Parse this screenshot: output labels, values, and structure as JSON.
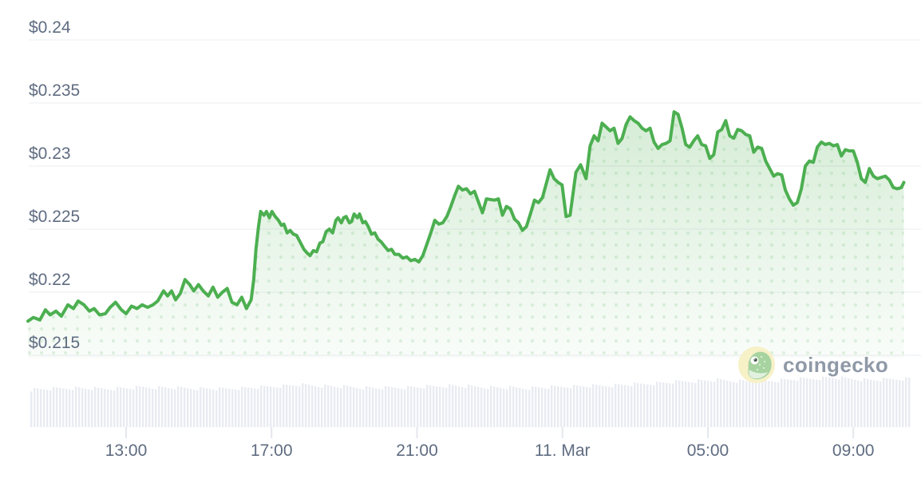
{
  "watermark": {
    "text": "coingecko"
  },
  "chart_data": {
    "type": "area",
    "x_axis": {
      "unit": "time",
      "domain_hours": [
        10.3,
        34.4
      ],
      "ticks": [
        {
          "value": 13,
          "label": "13:00"
        },
        {
          "value": 17,
          "label": "17:00"
        },
        {
          "value": 21,
          "label": "21:00"
        },
        {
          "value": 25,
          "label": "11. Mar"
        },
        {
          "value": 29,
          "label": "05:00"
        },
        {
          "value": 33,
          "label": "09:00"
        }
      ]
    },
    "y_axis": {
      "unit": "USD",
      "domain": [
        0.2147,
        0.2432
      ],
      "ticks": [
        {
          "value": 0.24,
          "label": "$0.24"
        },
        {
          "value": 0.235,
          "label": "$0.235"
        },
        {
          "value": 0.23,
          "label": "$0.23"
        },
        {
          "value": 0.225,
          "label": "$0.225"
        },
        {
          "value": 0.22,
          "label": "$0.22"
        },
        {
          "value": 0.215,
          "label": "$0.215"
        }
      ]
    },
    "series": [
      {
        "name": "price",
        "unit": "USD",
        "points": [
          [
            10.3,
            0.2177
          ],
          [
            10.45,
            0.218
          ],
          [
            10.63,
            0.2178
          ],
          [
            10.78,
            0.2186
          ],
          [
            10.91,
            0.2182
          ],
          [
            11.07,
            0.2185
          ],
          [
            11.22,
            0.2181
          ],
          [
            11.4,
            0.219
          ],
          [
            11.55,
            0.2187
          ],
          [
            11.68,
            0.2193
          ],
          [
            11.84,
            0.219
          ],
          [
            11.99,
            0.2185
          ],
          [
            12.12,
            0.2187
          ],
          [
            12.27,
            0.2182
          ],
          [
            12.43,
            0.2183
          ],
          [
            12.56,
            0.2188
          ],
          [
            12.71,
            0.2192
          ],
          [
            12.87,
            0.2186
          ],
          [
            13.0,
            0.2183
          ],
          [
            13.15,
            0.2189
          ],
          [
            13.3,
            0.2187
          ],
          [
            13.44,
            0.219
          ],
          [
            13.59,
            0.2188
          ],
          [
            13.74,
            0.219
          ],
          [
            13.87,
            0.2193
          ],
          [
            14.03,
            0.2201
          ],
          [
            14.14,
            0.2197
          ],
          [
            14.25,
            0.2201
          ],
          [
            14.36,
            0.2194
          ],
          [
            14.49,
            0.2199
          ],
          [
            14.62,
            0.221
          ],
          [
            14.75,
            0.2206
          ],
          [
            14.86,
            0.2201
          ],
          [
            14.99,
            0.2206
          ],
          [
            15.12,
            0.2201
          ],
          [
            15.26,
            0.2197
          ],
          [
            15.39,
            0.2204
          ],
          [
            15.52,
            0.2196
          ],
          [
            15.65,
            0.22
          ],
          [
            15.78,
            0.2203
          ],
          [
            15.91,
            0.2192
          ],
          [
            16.05,
            0.219
          ],
          [
            16.18,
            0.2196
          ],
          [
            16.31,
            0.2187
          ],
          [
            16.44,
            0.2194
          ],
          [
            16.51,
            0.221
          ],
          [
            16.57,
            0.2234
          ],
          [
            16.64,
            0.2252
          ],
          [
            16.7,
            0.2264
          ],
          [
            16.79,
            0.2261
          ],
          [
            16.86,
            0.2264
          ],
          [
            16.94,
            0.2259
          ],
          [
            17.01,
            0.2264
          ],
          [
            17.1,
            0.226
          ],
          [
            17.19,
            0.2257
          ],
          [
            17.27,
            0.2253
          ],
          [
            17.34,
            0.2254
          ],
          [
            17.43,
            0.2247
          ],
          [
            17.51,
            0.2249
          ],
          [
            17.6,
            0.2246
          ],
          [
            17.69,
            0.2245
          ],
          [
            17.8,
            0.2239
          ],
          [
            17.89,
            0.2234
          ],
          [
            17.98,
            0.2231
          ],
          [
            18.06,
            0.2229
          ],
          [
            18.15,
            0.2233
          ],
          [
            18.24,
            0.2232
          ],
          [
            18.33,
            0.2239
          ],
          [
            18.41,
            0.224
          ],
          [
            18.5,
            0.2248
          ],
          [
            18.59,
            0.225
          ],
          [
            18.68,
            0.2247
          ],
          [
            18.77,
            0.2257
          ],
          [
            18.83,
            0.2259
          ],
          [
            18.92,
            0.2255
          ],
          [
            18.98,
            0.2259
          ],
          [
            19.05,
            0.226
          ],
          [
            19.14,
            0.2255
          ],
          [
            19.2,
            0.2256
          ],
          [
            19.27,
            0.2262
          ],
          [
            19.36,
            0.2259
          ],
          [
            19.42,
            0.2262
          ],
          [
            19.51,
            0.2255
          ],
          [
            19.58,
            0.2256
          ],
          [
            19.66,
            0.2252
          ],
          [
            19.75,
            0.2246
          ],
          [
            19.84,
            0.2247
          ],
          [
            19.93,
            0.2242
          ],
          [
            20.01,
            0.224
          ],
          [
            20.12,
            0.2236
          ],
          [
            20.21,
            0.2233
          ],
          [
            20.3,
            0.2234
          ],
          [
            20.39,
            0.223
          ],
          [
            20.5,
            0.223
          ],
          [
            20.61,
            0.2227
          ],
          [
            20.72,
            0.2228
          ],
          [
            20.83,
            0.2225
          ],
          [
            20.94,
            0.2226
          ],
          [
            21.05,
            0.2224
          ],
          [
            21.16,
            0.2229
          ],
          [
            21.27,
            0.2238
          ],
          [
            21.38,
            0.2247
          ],
          [
            21.49,
            0.2257
          ],
          [
            21.6,
            0.2254
          ],
          [
            21.71,
            0.2255
          ],
          [
            21.82,
            0.226
          ],
          [
            21.93,
            0.2268
          ],
          [
            22.03,
            0.2276
          ],
          [
            22.14,
            0.2284
          ],
          [
            22.25,
            0.2281
          ],
          [
            22.36,
            0.2282
          ],
          [
            22.47,
            0.2278
          ],
          [
            22.58,
            0.228
          ],
          [
            22.8,
            0.2263
          ],
          [
            22.91,
            0.2274
          ],
          [
            23.13,
            0.2273
          ],
          [
            23.24,
            0.2274
          ],
          [
            23.35,
            0.2261
          ],
          [
            23.46,
            0.2268
          ],
          [
            23.57,
            0.2266
          ],
          [
            23.68,
            0.2258
          ],
          [
            23.79,
            0.2255
          ],
          [
            23.9,
            0.2249
          ],
          [
            24.01,
            0.2252
          ],
          [
            24.12,
            0.2262
          ],
          [
            24.23,
            0.2273
          ],
          [
            24.34,
            0.2271
          ],
          [
            24.45,
            0.2275
          ],
          [
            24.66,
            0.2297
          ],
          [
            24.77,
            0.229
          ],
          [
            24.88,
            0.2287
          ],
          [
            24.99,
            0.2285
          ],
          [
            25.1,
            0.226
          ],
          [
            25.21,
            0.2261
          ],
          [
            25.37,
            0.2295
          ],
          [
            25.5,
            0.2301
          ],
          [
            25.65,
            0.229
          ],
          [
            25.76,
            0.2316
          ],
          [
            25.87,
            0.2324
          ],
          [
            25.98,
            0.232
          ],
          [
            26.09,
            0.2334
          ],
          [
            26.2,
            0.2331
          ],
          [
            26.31,
            0.2328
          ],
          [
            26.42,
            0.233
          ],
          [
            26.53,
            0.2318
          ],
          [
            26.64,
            0.2322
          ],
          [
            26.75,
            0.2333
          ],
          [
            26.86,
            0.2339
          ],
          [
            26.97,
            0.2336
          ],
          [
            27.08,
            0.2334
          ],
          [
            27.19,
            0.233
          ],
          [
            27.3,
            0.2328
          ],
          [
            27.41,
            0.233
          ],
          [
            27.52,
            0.2319
          ],
          [
            27.63,
            0.2314
          ],
          [
            27.74,
            0.2317
          ],
          [
            27.85,
            0.2318
          ],
          [
            27.96,
            0.232
          ],
          [
            28.07,
            0.2343
          ],
          [
            28.18,
            0.2341
          ],
          [
            28.29,
            0.233
          ],
          [
            28.39,
            0.2317
          ],
          [
            28.5,
            0.2315
          ],
          [
            28.61,
            0.232
          ],
          [
            28.72,
            0.2324
          ],
          [
            28.83,
            0.2317
          ],
          [
            28.94,
            0.2316
          ],
          [
            29.05,
            0.2306
          ],
          [
            29.16,
            0.2309
          ],
          [
            29.27,
            0.2327
          ],
          [
            29.38,
            0.2329
          ],
          [
            29.49,
            0.2336
          ],
          [
            29.6,
            0.2324
          ],
          [
            29.71,
            0.2322
          ],
          [
            29.82,
            0.2329
          ],
          [
            29.93,
            0.2328
          ],
          [
            30.04,
            0.2325
          ],
          [
            30.15,
            0.2324
          ],
          [
            30.26,
            0.2311
          ],
          [
            30.37,
            0.2315
          ],
          [
            30.48,
            0.2314
          ],
          [
            30.59,
            0.2304
          ],
          [
            30.7,
            0.2298
          ],
          [
            30.81,
            0.2292
          ],
          [
            30.92,
            0.2294
          ],
          [
            31.03,
            0.2293
          ],
          [
            31.13,
            0.2281
          ],
          [
            31.24,
            0.2274
          ],
          [
            31.35,
            0.2269
          ],
          [
            31.46,
            0.2271
          ],
          [
            31.57,
            0.2282
          ],
          [
            31.68,
            0.23
          ],
          [
            31.79,
            0.2304
          ],
          [
            31.9,
            0.2303
          ],
          [
            32.01,
            0.2315
          ],
          [
            32.12,
            0.2319
          ],
          [
            32.23,
            0.2317
          ],
          [
            32.34,
            0.2318
          ],
          [
            32.45,
            0.2316
          ],
          [
            32.56,
            0.2317
          ],
          [
            32.67,
            0.2308
          ],
          [
            32.78,
            0.2313
          ],
          [
            32.89,
            0.2312
          ],
          [
            33.0,
            0.2312
          ],
          [
            33.11,
            0.2303
          ],
          [
            33.22,
            0.229
          ],
          [
            33.33,
            0.2287
          ],
          [
            33.44,
            0.2298
          ],
          [
            33.55,
            0.2292
          ],
          [
            33.66,
            0.229
          ],
          [
            33.77,
            0.2291
          ],
          [
            33.88,
            0.2292
          ],
          [
            33.99,
            0.2289
          ],
          [
            34.1,
            0.2283
          ],
          [
            34.21,
            0.2282
          ],
          [
            34.32,
            0.2283
          ],
          [
            34.39,
            0.2287
          ]
        ]
      }
    ],
    "volume_bars": {
      "count": 276,
      "heights_envelope": [
        47,
        49,
        48,
        50,
        49,
        48,
        50,
        53,
        51,
        49,
        50,
        52,
        50,
        49,
        51,
        52,
        54,
        57,
        59,
        57,
        60,
        62,
        59,
        61
      ]
    },
    "colors": {
      "line": "#4caf50",
      "area_top": "rgba(76,175,80,0.24)",
      "area_bottom": "rgba(76,175,80,0.03)",
      "area_dots": "rgba(76,175,80,0.16)",
      "gridline": "#eef0f4",
      "axis_text": "#5f6c81",
      "volume_bar": "#e9ebf2",
      "tick_mark": "#e4e7ee",
      "logo_text": "#8f99a7",
      "logo_circle": "#f7f1c8",
      "logo_gecko": "#a7d3a0"
    },
    "legend": null,
    "grid": "horizontal-only"
  }
}
